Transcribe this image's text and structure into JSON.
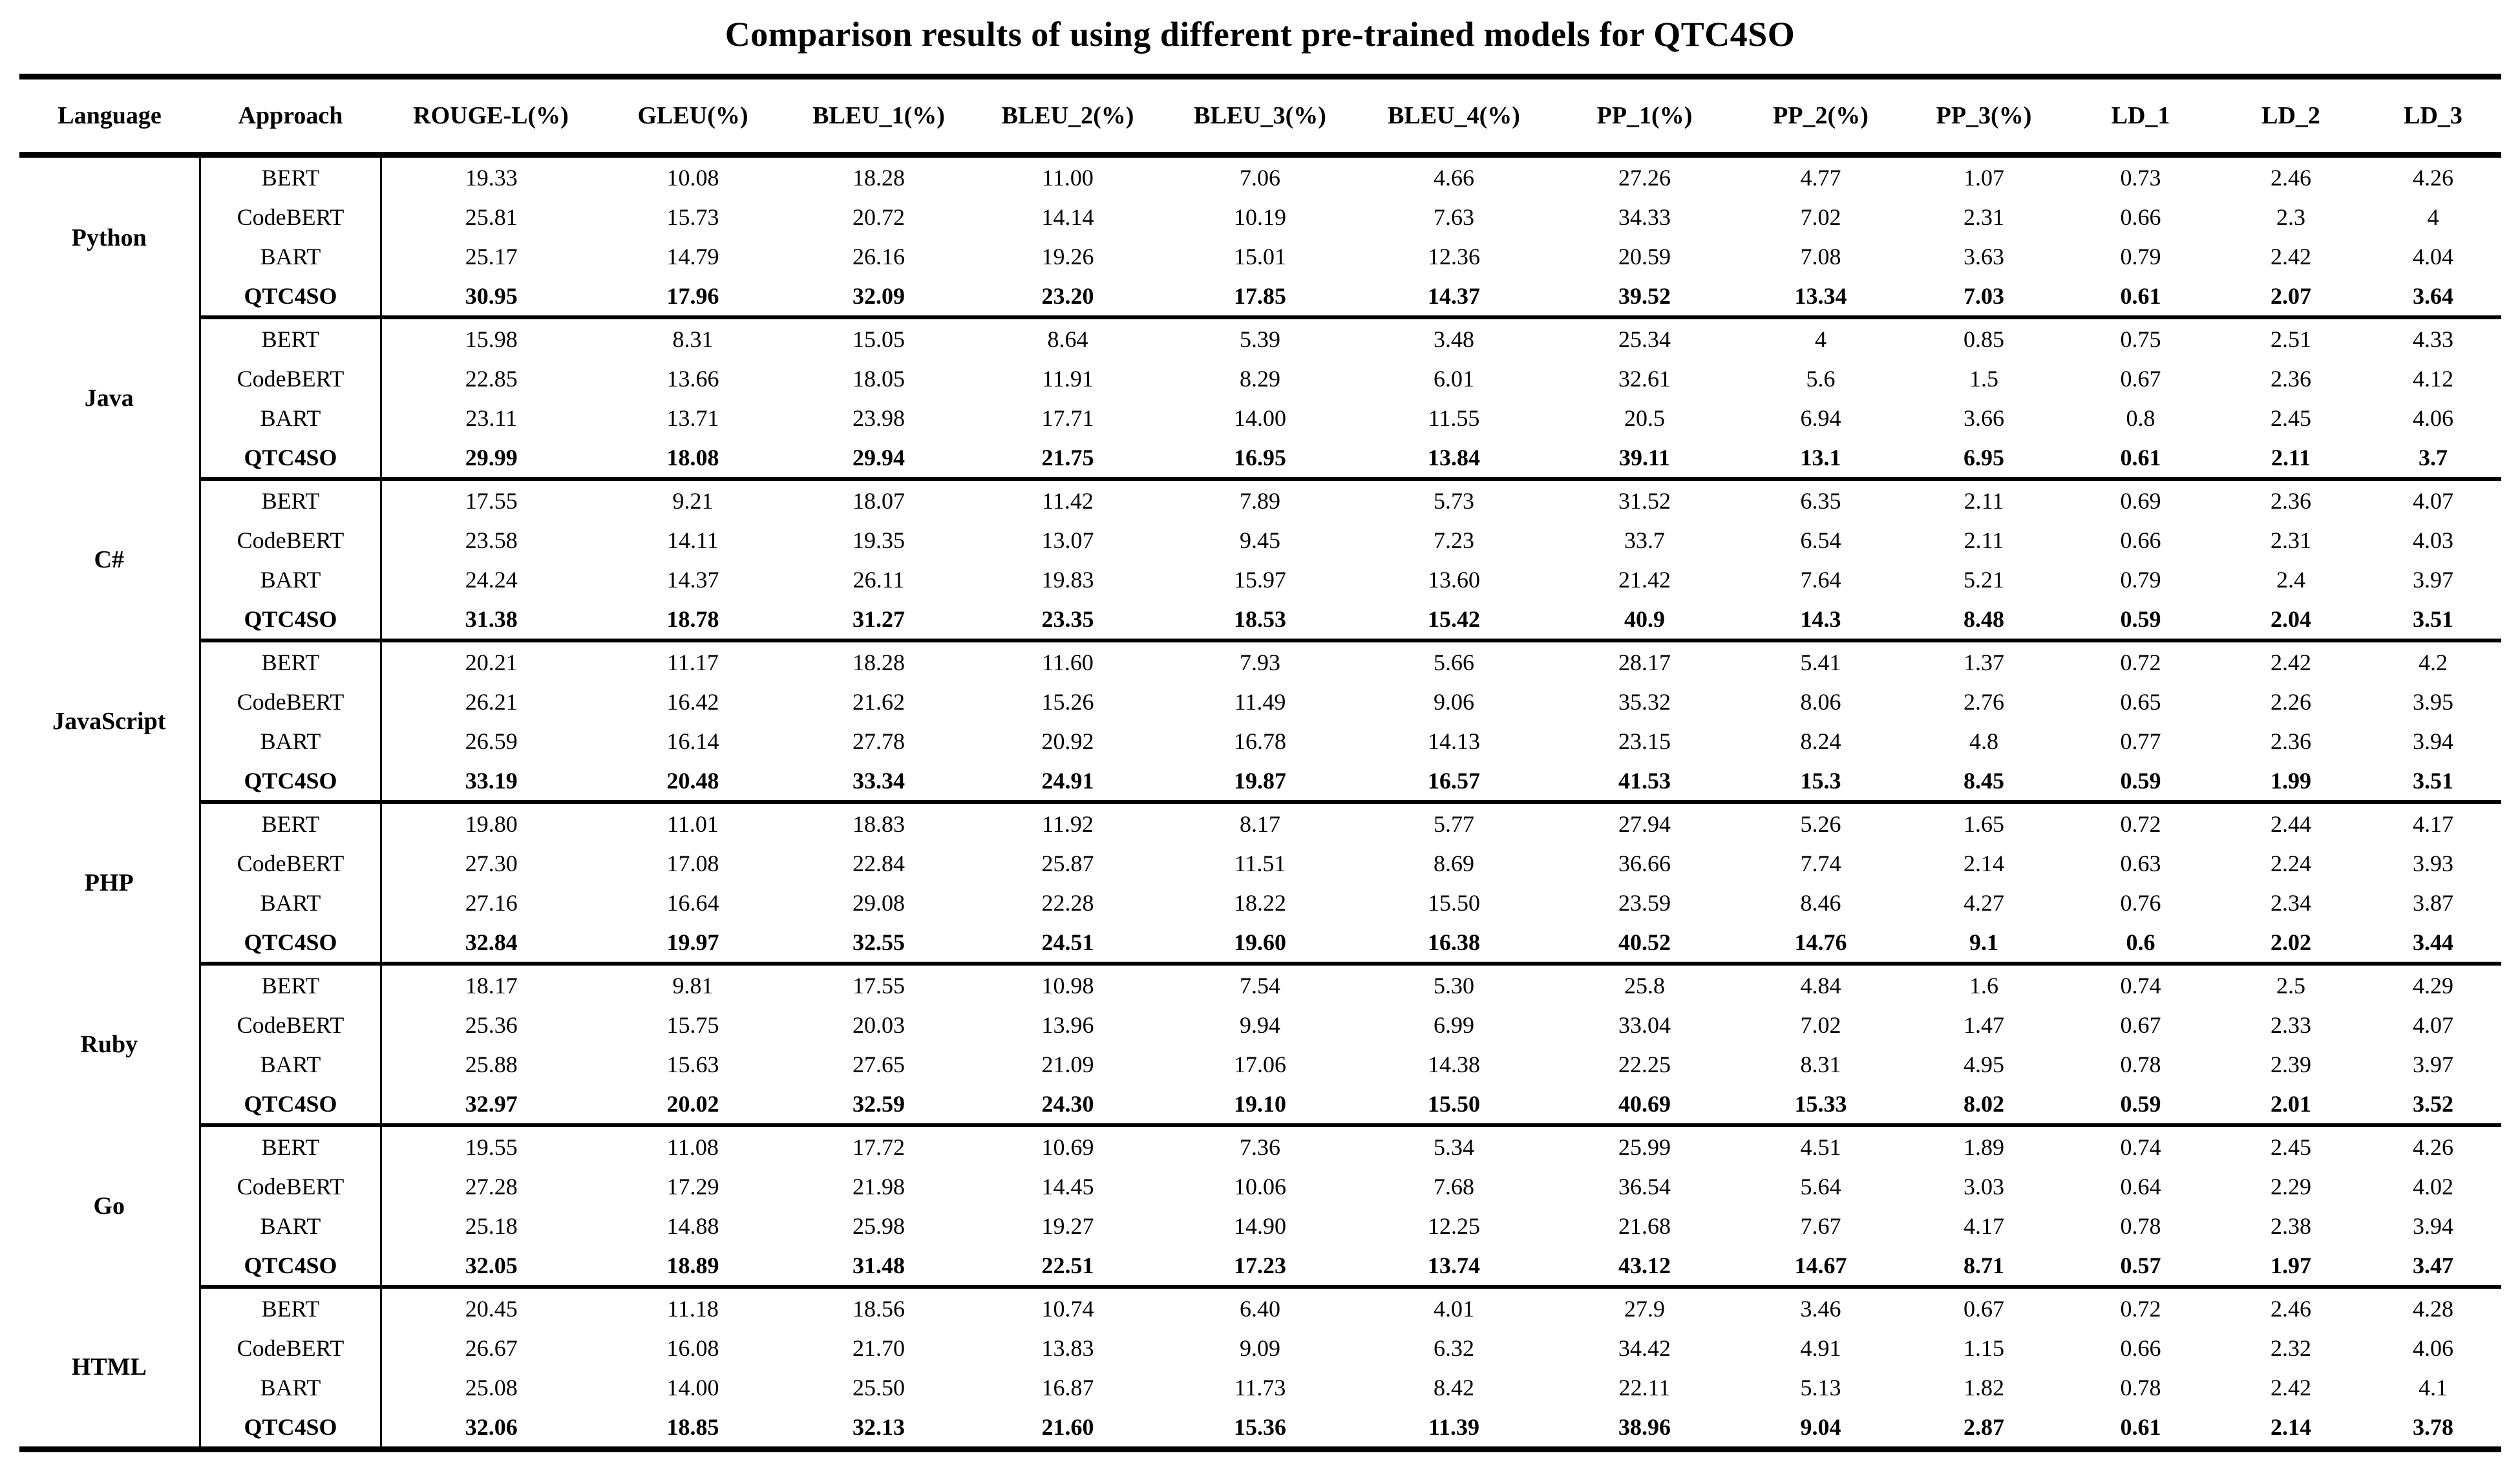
{
  "title": "Comparison results of using different pre-trained models for QTC4SO",
  "table": {
    "headers": [
      "Language",
      "Approach",
      "ROUGE-L(%)",
      "GLEU(%)",
      "BLEU_1(%)",
      "BLEU_2(%)",
      "BLEU_3(%)",
      "BLEU_4(%)",
      "PP_1(%)",
      "PP_2(%)",
      "PP_3(%)",
      "LD_1",
      "LD_2",
      "LD_3"
    ],
    "groups": [
      {
        "language": "Python",
        "rows": [
          {
            "approach": "BERT",
            "best": false,
            "values": [
              "19.33",
              "10.08",
              "18.28",
              "11.00",
              "7.06",
              "4.66",
              "27.26",
              "4.77",
              "1.07",
              "0.73",
              "2.46",
              "4.26"
            ]
          },
          {
            "approach": "CodeBERT",
            "best": false,
            "values": [
              "25.81",
              "15.73",
              "20.72",
              "14.14",
              "10.19",
              "7.63",
              "34.33",
              "7.02",
              "2.31",
              "0.66",
              "2.3",
              "4"
            ]
          },
          {
            "approach": "BART",
            "best": false,
            "values": [
              "25.17",
              "14.79",
              "26.16",
              "19.26",
              "15.01",
              "12.36",
              "20.59",
              "7.08",
              "3.63",
              "0.79",
              "2.42",
              "4.04"
            ]
          },
          {
            "approach": "QTC4SO",
            "best": true,
            "values": [
              "30.95",
              "17.96",
              "32.09",
              "23.20",
              "17.85",
              "14.37",
              "39.52",
              "13.34",
              "7.03",
              "0.61",
              "2.07",
              "3.64"
            ]
          }
        ]
      },
      {
        "language": "Java",
        "rows": [
          {
            "approach": "BERT",
            "best": false,
            "values": [
              "15.98",
              "8.31",
              "15.05",
              "8.64",
              "5.39",
              "3.48",
              "25.34",
              "4",
              "0.85",
              "0.75",
              "2.51",
              "4.33"
            ]
          },
          {
            "approach": "CodeBERT",
            "best": false,
            "values": [
              "22.85",
              "13.66",
              "18.05",
              "11.91",
              "8.29",
              "6.01",
              "32.61",
              "5.6",
              "1.5",
              "0.67",
              "2.36",
              "4.12"
            ]
          },
          {
            "approach": "BART",
            "best": false,
            "values": [
              "23.11",
              "13.71",
              "23.98",
              "17.71",
              "14.00",
              "11.55",
              "20.5",
              "6.94",
              "3.66",
              "0.8",
              "2.45",
              "4.06"
            ]
          },
          {
            "approach": "QTC4SO",
            "best": true,
            "values": [
              "29.99",
              "18.08",
              "29.94",
              "21.75",
              "16.95",
              "13.84",
              "39.11",
              "13.1",
              "6.95",
              "0.61",
              "2.11",
              "3.7"
            ]
          }
        ]
      },
      {
        "language": "C#",
        "rows": [
          {
            "approach": "BERT",
            "best": false,
            "values": [
              "17.55",
              "9.21",
              "18.07",
              "11.42",
              "7.89",
              "5.73",
              "31.52",
              "6.35",
              "2.11",
              "0.69",
              "2.36",
              "4.07"
            ]
          },
          {
            "approach": "CodeBERT",
            "best": false,
            "values": [
              "23.58",
              "14.11",
              "19.35",
              "13.07",
              "9.45",
              "7.23",
              "33.7",
              "6.54",
              "2.11",
              "0.66",
              "2.31",
              "4.03"
            ]
          },
          {
            "approach": "BART",
            "best": false,
            "values": [
              "24.24",
              "14.37",
              "26.11",
              "19.83",
              "15.97",
              "13.60",
              "21.42",
              "7.64",
              "5.21",
              "0.79",
              "2.4",
              "3.97"
            ]
          },
          {
            "approach": "QTC4SO",
            "best": true,
            "values": [
              "31.38",
              "18.78",
              "31.27",
              "23.35",
              "18.53",
              "15.42",
              "40.9",
              "14.3",
              "8.48",
              "0.59",
              "2.04",
              "3.51"
            ]
          }
        ]
      },
      {
        "language": "JavaScript",
        "rows": [
          {
            "approach": "BERT",
            "best": false,
            "values": [
              "20.21",
              "11.17",
              "18.28",
              "11.60",
              "7.93",
              "5.66",
              "28.17",
              "5.41",
              "1.37",
              "0.72",
              "2.42",
              "4.2"
            ]
          },
          {
            "approach": "CodeBERT",
            "best": false,
            "values": [
              "26.21",
              "16.42",
              "21.62",
              "15.26",
              "11.49",
              "9.06",
              "35.32",
              "8.06",
              "2.76",
              "0.65",
              "2.26",
              "3.95"
            ]
          },
          {
            "approach": "BART",
            "best": false,
            "values": [
              "26.59",
              "16.14",
              "27.78",
              "20.92",
              "16.78",
              "14.13",
              "23.15",
              "8.24",
              "4.8",
              "0.77",
              "2.36",
              "3.94"
            ]
          },
          {
            "approach": "QTC4SO",
            "best": true,
            "values": [
              "33.19",
              "20.48",
              "33.34",
              "24.91",
              "19.87",
              "16.57",
              "41.53",
              "15.3",
              "8.45",
              "0.59",
              "1.99",
              "3.51"
            ]
          }
        ]
      },
      {
        "language": "PHP",
        "rows": [
          {
            "approach": "BERT",
            "best": false,
            "values": [
              "19.80",
              "11.01",
              "18.83",
              "11.92",
              "8.17",
              "5.77",
              "27.94",
              "5.26",
              "1.65",
              "0.72",
              "2.44",
              "4.17"
            ]
          },
          {
            "approach": "CodeBERT",
            "best": false,
            "values": [
              "27.30",
              "17.08",
              "22.84",
              "25.87",
              "11.51",
              "8.69",
              "36.66",
              "7.74",
              "2.14",
              "0.63",
              "2.24",
              "3.93"
            ]
          },
          {
            "approach": "BART",
            "best": false,
            "values": [
              "27.16",
              "16.64",
              "29.08",
              "22.28",
              "18.22",
              "15.50",
              "23.59",
              "8.46",
              "4.27",
              "0.76",
              "2.34",
              "3.87"
            ]
          },
          {
            "approach": "QTC4SO",
            "best": true,
            "values": [
              "32.84",
              "19.97",
              "32.55",
              "24.51",
              "19.60",
              "16.38",
              "40.52",
              "14.76",
              "9.1",
              "0.6",
              "2.02",
              "3.44"
            ]
          }
        ]
      },
      {
        "language": "Ruby",
        "rows": [
          {
            "approach": "BERT",
            "best": false,
            "values": [
              "18.17",
              "9.81",
              "17.55",
              "10.98",
              "7.54",
              "5.30",
              "25.8",
              "4.84",
              "1.6",
              "0.74",
              "2.5",
              "4.29"
            ]
          },
          {
            "approach": "CodeBERT",
            "best": false,
            "values": [
              "25.36",
              "15.75",
              "20.03",
              "13.96",
              "9.94",
              "6.99",
              "33.04",
              "7.02",
              "1.47",
              "0.67",
              "2.33",
              "4.07"
            ]
          },
          {
            "approach": "BART",
            "best": false,
            "values": [
              "25.88",
              "15.63",
              "27.65",
              "21.09",
              "17.06",
              "14.38",
              "22.25",
              "8.31",
              "4.95",
              "0.78",
              "2.39",
              "3.97"
            ]
          },
          {
            "approach": "QTC4SO",
            "best": true,
            "values": [
              "32.97",
              "20.02",
              "32.59",
              "24.30",
              "19.10",
              "15.50",
              "40.69",
              "15.33",
              "8.02",
              "0.59",
              "2.01",
              "3.52"
            ]
          }
        ]
      },
      {
        "language": "Go",
        "rows": [
          {
            "approach": "BERT",
            "best": false,
            "values": [
              "19.55",
              "11.08",
              "17.72",
              "10.69",
              "7.36",
              "5.34",
              "25.99",
              "4.51",
              "1.89",
              "0.74",
              "2.45",
              "4.26"
            ]
          },
          {
            "approach": "CodeBERT",
            "best": false,
            "values": [
              "27.28",
              "17.29",
              "21.98",
              "14.45",
              "10.06",
              "7.68",
              "36.54",
              "5.64",
              "3.03",
              "0.64",
              "2.29",
              "4.02"
            ]
          },
          {
            "approach": "BART",
            "best": false,
            "values": [
              "25.18",
              "14.88",
              "25.98",
              "19.27",
              "14.90",
              "12.25",
              "21.68",
              "7.67",
              "4.17",
              "0.78",
              "2.38",
              "3.94"
            ]
          },
          {
            "approach": "QTC4SO",
            "best": true,
            "values": [
              "32.05",
              "18.89",
              "31.48",
              "22.51",
              "17.23",
              "13.74",
              "43.12",
              "14.67",
              "8.71",
              "0.57",
              "1.97",
              "3.47"
            ]
          }
        ]
      },
      {
        "language": "HTML",
        "rows": [
          {
            "approach": "BERT",
            "best": false,
            "values": [
              "20.45",
              "11.18",
              "18.56",
              "10.74",
              "6.40",
              "4.01",
              "27.9",
              "3.46",
              "0.67",
              "0.72",
              "2.46",
              "4.28"
            ]
          },
          {
            "approach": "CodeBERT",
            "best": false,
            "values": [
              "26.67",
              "16.08",
              "21.70",
              "13.83",
              "9.09",
              "6.32",
              "34.42",
              "4.91",
              "1.15",
              "0.66",
              "2.32",
              "4.06"
            ]
          },
          {
            "approach": "BART",
            "best": false,
            "values": [
              "25.08",
              "14.00",
              "25.50",
              "16.87",
              "11.73",
              "8.42",
              "22.11",
              "5.13",
              "1.82",
              "0.78",
              "2.42",
              "4.1"
            ]
          },
          {
            "approach": "QTC4SO",
            "best": true,
            "values": [
              "32.06",
              "18.85",
              "32.13",
              "21.60",
              "15.36",
              "11.39",
              "38.96",
              "9.04",
              "2.87",
              "0.61",
              "2.14",
              "3.78"
            ]
          }
        ]
      }
    ]
  }
}
